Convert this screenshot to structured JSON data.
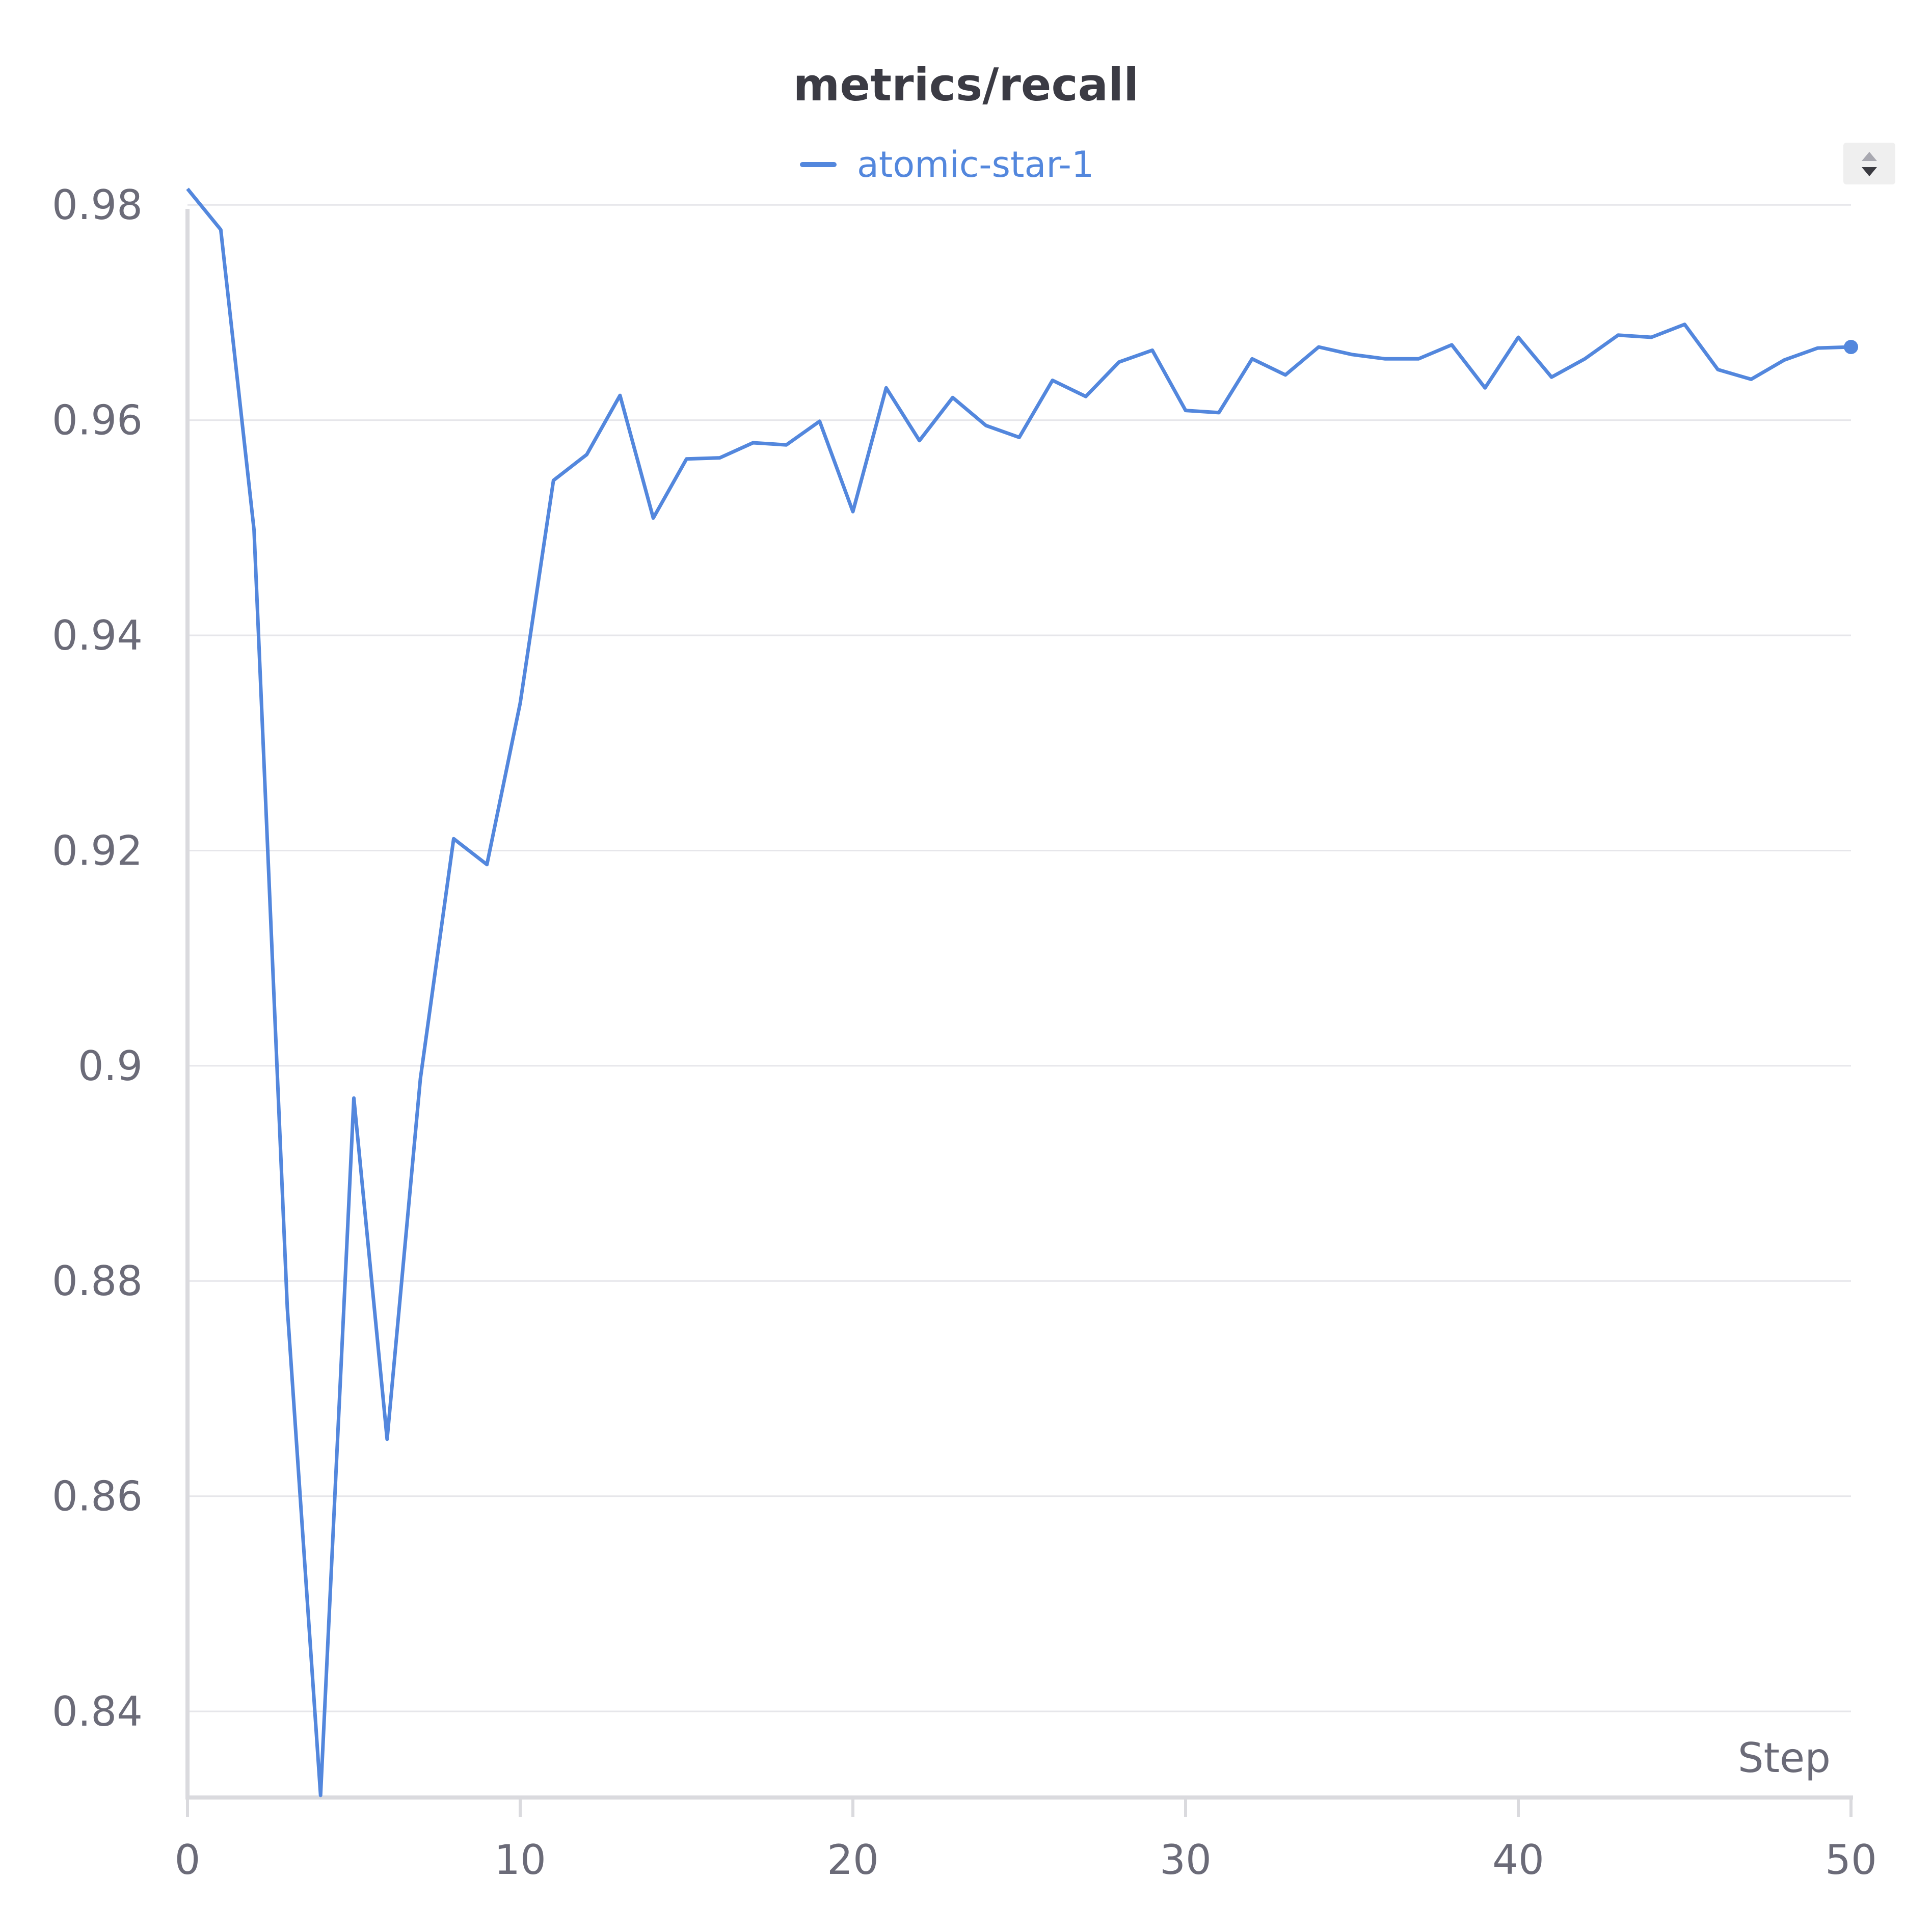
{
  "chart_data": {
    "type": "line",
    "title": "metrics/recall",
    "xlabel": "Step",
    "ylabel": "",
    "xlim": [
      0,
      50
    ],
    "ylim": [
      0.832,
      0.982
    ],
    "x_ticks": [
      0,
      10,
      20,
      30,
      40,
      50
    ],
    "x_tick_labels": [
      "0",
      "10",
      "20",
      "30",
      "40",
      "50"
    ],
    "y_ticks": [
      0.84,
      0.86,
      0.88,
      0.9,
      0.92,
      0.94,
      0.96,
      0.98
    ],
    "y_tick_labels": [
      "0.84",
      "0.86",
      "0.88",
      "0.9",
      "0.92",
      "0.94",
      "0.96",
      "0.98"
    ],
    "grid": true,
    "legend_position": "top-center",
    "series": [
      {
        "name": "atomic-star-1",
        "color": "#5387dd",
        "x": [
          0,
          1,
          2,
          3,
          4,
          5,
          6,
          7,
          8,
          9,
          10,
          11,
          12,
          13,
          14,
          15,
          16,
          17,
          18,
          19,
          20,
          21,
          22,
          23,
          24,
          25,
          26,
          27,
          28,
          29,
          30,
          31,
          32,
          33,
          34,
          35,
          36,
          37,
          38,
          39,
          40,
          41,
          42,
          43,
          44,
          45,
          46,
          47,
          48,
          49,
          50
        ],
        "values": [
          0.9815,
          0.9777,
          0.9498,
          0.8775,
          0.8322,
          0.897,
          0.8653,
          0.8988,
          0.9211,
          0.9187,
          0.9337,
          0.9544,
          0.9568,
          0.9623,
          0.9509,
          0.9564,
          0.9565,
          0.9579,
          0.9577,
          0.9599,
          0.9515,
          0.963,
          0.9581,
          0.9621,
          0.9595,
          0.9584,
          0.9637,
          0.9622,
          0.9654,
          0.9665,
          0.9609,
          0.9607,
          0.9657,
          0.9642,
          0.9668,
          0.9661,
          0.9657,
          0.9657,
          0.967,
          0.963,
          0.9677,
          0.964,
          0.9657,
          0.9679,
          0.9677,
          0.9689,
          0.9647,
          0.9638,
          0.9656,
          0.9667,
          0.9668
        ]
      }
    ]
  },
  "legend": {
    "series_label": "atomic-star-1",
    "series_color": "#5387dd"
  },
  "controls": {
    "sort_icon": "sort-icon"
  }
}
